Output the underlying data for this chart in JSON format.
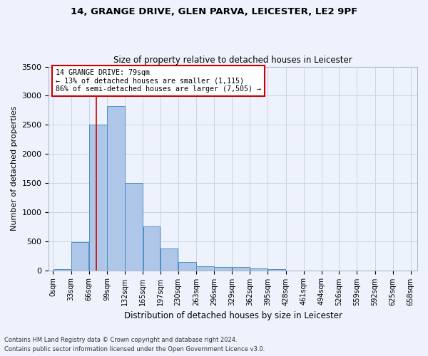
{
  "title": "14, GRANGE DRIVE, GLEN PARVA, LEICESTER, LE2 9PF",
  "subtitle": "Size of property relative to detached houses in Leicester",
  "xlabel": "Distribution of detached houses by size in Leicester",
  "ylabel": "Number of detached properties",
  "footnote1": "Contains HM Land Registry data © Crown copyright and database right 2024.",
  "footnote2": "Contains public sector information licensed under the Open Government Licence v3.0.",
  "annotation_line1": "14 GRANGE DRIVE: 79sqm",
  "annotation_line2": "← 13% of detached houses are smaller (1,115)",
  "annotation_line3": "86% of semi-detached houses are larger (7,505) →",
  "property_size": 79,
  "bar_edges": [
    0,
    33,
    66,
    99,
    132,
    165,
    197,
    230,
    263,
    296,
    329,
    362,
    395,
    428,
    461,
    494,
    526,
    559,
    592,
    625,
    658
  ],
  "bar_heights": [
    20,
    480,
    2500,
    2820,
    1500,
    750,
    380,
    145,
    70,
    50,
    55,
    30,
    25,
    0,
    0,
    0,
    0,
    0,
    0,
    0
  ],
  "bar_color": "#aec6e8",
  "bar_edge_color": "#4a90c4",
  "vline_color": "#cc0000",
  "vline_x": 79,
  "annotation_box_color": "#cc0000",
  "background_color": "#eef2fc",
  "grid_color": "#c8d4e8",
  "ylim": [
    0,
    3500
  ],
  "yticks": [
    0,
    500,
    1000,
    1500,
    2000,
    2500,
    3000,
    3500
  ],
  "tick_labels": [
    "0sqm",
    "33sqm",
    "66sqm",
    "99sqm",
    "132sqm",
    "165sqm",
    "197sqm",
    "230sqm",
    "263sqm",
    "296sqm",
    "329sqm",
    "362sqm",
    "395sqm",
    "428sqm",
    "461sqm",
    "494sqm",
    "526sqm",
    "559sqm",
    "592sqm",
    "625sqm",
    "658sqm"
  ]
}
